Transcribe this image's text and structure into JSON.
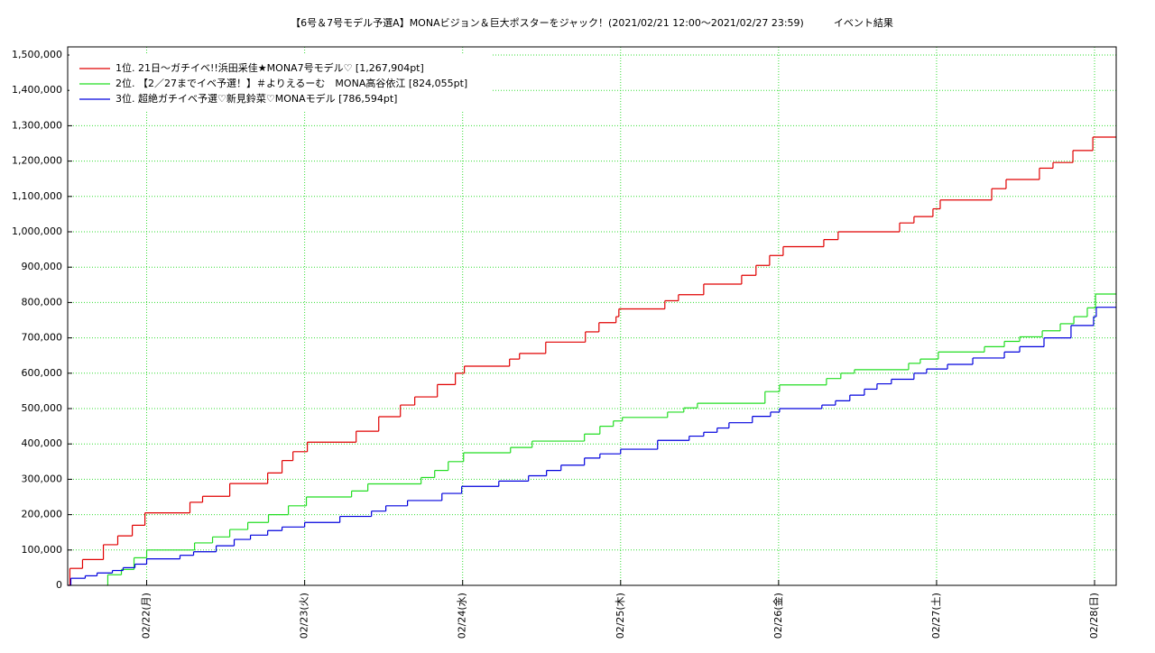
{
  "chart_data": {
    "type": "line",
    "step": true,
    "title": "【6号＆7号モデル予選A】MONAビジョン＆巨大ポスターをジャック！(2021/02/21 12:00〜2021/02/27 23:59)　　　イベント結果",
    "xlim": [
      21.5,
      28.137
    ],
    "xticks": [
      {
        "value": 22,
        "label": "02/22(月)"
      },
      {
        "value": 23,
        "label": "02/23(火)"
      },
      {
        "value": 24,
        "label": "02/24(水)"
      },
      {
        "value": 25,
        "label": "02/25(木)"
      },
      {
        "value": 26,
        "label": "02/26(金)"
      },
      {
        "value": 27,
        "label": "02/27(土)"
      },
      {
        "value": 28,
        "label": "02/28(日)"
      }
    ],
    "ylim": [
      0,
      1523000
    ],
    "yticks": [
      0,
      {
        "value": 100000,
        "label": "100,000"
      },
      {
        "value": 200000,
        "label": "200,000"
      },
      {
        "value": 300000,
        "label": "300,000"
      },
      {
        "value": 400000,
        "label": "400,000"
      },
      {
        "value": 500000,
        "label": "500,000"
      },
      {
        "value": 600000,
        "label": "600,000"
      },
      {
        "value": 700000,
        "label": "700,000"
      },
      {
        "value": 800000,
        "label": "800,000"
      },
      {
        "value": 900000,
        "label": "900,000"
      },
      {
        "value": 1000000,
        "label": "1,000,000"
      },
      {
        "value": 1100000,
        "label": "1,100,000"
      },
      {
        "value": 1200000,
        "label": "1,200,000"
      },
      {
        "value": 1300000,
        "label": "1,300,000"
      },
      {
        "value": 1400000,
        "label": "1,400,000"
      },
      {
        "value": 1500000,
        "label": "1,500,000"
      }
    ],
    "grid": true,
    "legend": "upper left",
    "series": [
      {
        "name": "1位. 21日〜ガチイベ!!浜田采佳★MONA7号モデル♡ [1,267,904pt]",
        "color": "#e00000",
        "x": [
          21.5,
          21.514,
          21.594,
          21.726,
          21.817,
          21.909,
          21.989,
          22.274,
          22.354,
          22.526,
          22.766,
          22.857,
          22.926,
          23.017,
          23.326,
          23.469,
          23.606,
          23.697,
          23.84,
          23.954,
          24.011,
          24.297,
          24.36,
          24.526,
          24.777,
          24.863,
          24.971,
          24.989,
          25.28,
          25.366,
          25.526,
          25.766,
          25.857,
          25.943,
          26.029,
          26.286,
          26.377,
          26.766,
          26.857,
          26.977,
          27.023,
          27.349,
          27.44,
          27.651,
          27.737,
          27.863,
          27.989,
          28.137
        ],
        "values": [
          0,
          48000,
          73000,
          115000,
          140000,
          170000,
          205000,
          235000,
          252000,
          288000,
          318000,
          353000,
          378000,
          405000,
          436000,
          477000,
          510000,
          533000,
          568000,
          600000,
          620000,
          640000,
          656000,
          688000,
          717000,
          743000,
          760000,
          782000,
          805000,
          822000,
          852000,
          877000,
          905000,
          933000,
          958000,
          978000,
          1000000,
          1025000,
          1043000,
          1065000,
          1090000,
          1122000,
          1148000,
          1180000,
          1196000,
          1230000,
          1267904,
          1267904
        ]
      },
      {
        "name": "2位. 【2／27までイベ予選！】＃よりえるーむ　MONA高谷依江 [824,055pt]",
        "color": "#22dd22",
        "x": [
          21.749,
          21.754,
          21.84,
          21.92,
          22.0,
          22.303,
          22.417,
          22.526,
          22.64,
          22.771,
          22.897,
          23.011,
          23.297,
          23.4,
          23.737,
          23.823,
          23.909,
          24.006,
          24.303,
          24.44,
          24.771,
          24.869,
          24.954,
          25.011,
          25.297,
          25.4,
          25.486,
          25.914,
          26.006,
          26.303,
          26.394,
          26.48,
          26.823,
          26.897,
          27.011,
          27.303,
          27.429,
          27.526,
          27.669,
          27.783,
          27.869,
          27.954,
          28.006,
          28.137
        ],
        "values": [
          0,
          30000,
          45000,
          78000,
          100000,
          120000,
          137000,
          158000,
          178000,
          200000,
          225000,
          250000,
          267000,
          287000,
          305000,
          325000,
          350000,
          375000,
          390000,
          408000,
          428000,
          450000,
          465000,
          475000,
          490000,
          502000,
          515000,
          548000,
          567000,
          585000,
          600000,
          610000,
          628000,
          640000,
          660000,
          675000,
          690000,
          703000,
          720000,
          740000,
          760000,
          785000,
          824055,
          824055
        ]
      },
      {
        "name": "3位. 超絶ガチイベ予選♡新見鈴菜♡MONAモデル [786,594pt]",
        "color": "#0000dd",
        "x": [
          21.5,
          21.52,
          21.611,
          21.686,
          21.783,
          21.851,
          21.926,
          22.0,
          22.211,
          22.297,
          22.44,
          22.554,
          22.657,
          22.766,
          22.857,
          23.0,
          23.223,
          23.423,
          23.514,
          23.651,
          23.869,
          23.994,
          24.229,
          24.417,
          24.531,
          24.623,
          24.771,
          24.869,
          25.0,
          25.234,
          25.434,
          25.526,
          25.611,
          25.686,
          25.834,
          25.949,
          26.006,
          26.274,
          26.36,
          26.451,
          26.543,
          26.623,
          26.714,
          26.857,
          26.937,
          27.069,
          27.229,
          27.429,
          27.526,
          27.68,
          27.851,
          27.994,
          28.011,
          28.137
        ],
        "values": [
          0,
          20000,
          27000,
          35000,
          42000,
          50000,
          60000,
          75000,
          85000,
          95000,
          112000,
          130000,
          142000,
          155000,
          165000,
          178000,
          195000,
          210000,
          225000,
          240000,
          260000,
          280000,
          295000,
          310000,
          325000,
          340000,
          360000,
          372000,
          385000,
          410000,
          422000,
          433000,
          445000,
          460000,
          478000,
          490000,
          500000,
          510000,
          522000,
          538000,
          555000,
          570000,
          583000,
          600000,
          612000,
          625000,
          643000,
          660000,
          675000,
          700000,
          735000,
          760000,
          786594,
          786594
        ]
      }
    ]
  }
}
